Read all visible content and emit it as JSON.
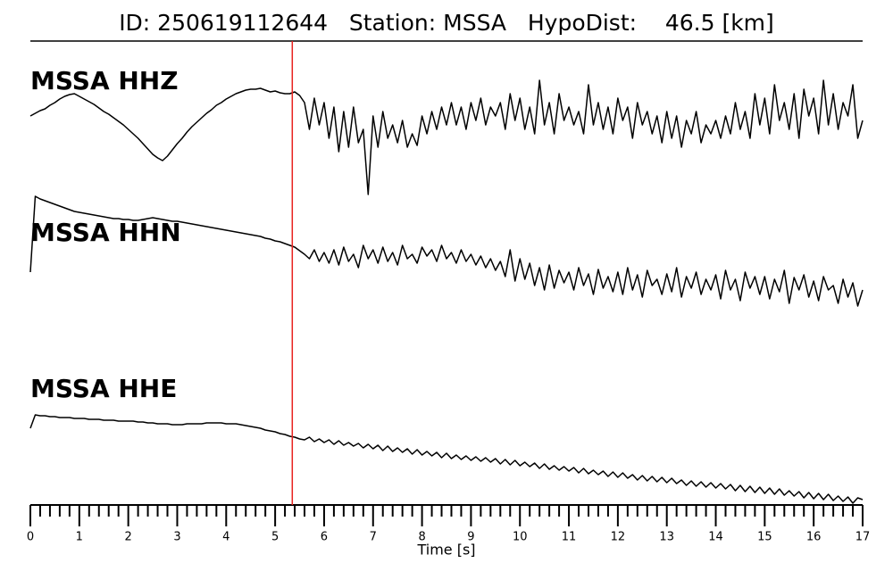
{
  "chart_data": {
    "type": "line",
    "title": "ID: 250619112644   Station: MSSA   HypoDist:    46.5 [km]",
    "xlabel": "Time [s]",
    "xlim": [
      0,
      17
    ],
    "xticks": [
      0,
      1,
      2,
      3,
      4,
      5,
      6,
      7,
      8,
      9,
      10,
      11,
      12,
      13,
      14,
      15,
      16,
      17
    ],
    "xminorticks": [
      0.2,
      0.4,
      0.6,
      0.8,
      1.2,
      1.4,
      1.6,
      1.8,
      2.2,
      2.4,
      2.6,
      2.8,
      3.2,
      3.4,
      3.6,
      3.8,
      4.2,
      4.4,
      4.6,
      4.8,
      5.2,
      5.4,
      5.6,
      5.8,
      6.2,
      6.4,
      6.6,
      6.8,
      7.2,
      7.4,
      7.6,
      7.8,
      8.2,
      8.4,
      8.6,
      8.8,
      9.2,
      9.4,
      9.6,
      9.8,
      10.2,
      10.4,
      10.6,
      10.8,
      11.2,
      11.4,
      11.6,
      11.8,
      12.2,
      12.4,
      12.6,
      12.8,
      13.2,
      13.4,
      13.6,
      13.8,
      14.2,
      14.4,
      14.6,
      14.8,
      15.2,
      15.4,
      15.6,
      15.8,
      16.2,
      16.4,
      16.6,
      16.8
    ],
    "marker_x": 5.35,
    "marker_color": "#e8221e",
    "label_color": "#4c9a0e",
    "x": [
      0,
      0.1,
      0.2,
      0.3,
      0.4,
      0.5,
      0.6,
      0.7,
      0.8,
      0.9,
      1,
      1.1,
      1.2,
      1.3,
      1.4,
      1.5,
      1.6,
      1.7,
      1.8,
      1.9,
      2,
      2.1,
      2.2,
      2.3,
      2.4,
      2.5,
      2.6,
      2.7,
      2.8,
      2.9,
      3,
      3.1,
      3.2,
      3.3,
      3.4,
      3.5,
      3.6,
      3.7,
      3.8,
      3.9,
      4,
      4.1,
      4.2,
      4.3,
      4.4,
      4.5,
      4.6,
      4.7,
      4.8,
      4.9,
      5,
      5.1,
      5.2,
      5.3,
      5.4,
      5.5,
      5.6,
      5.7,
      5.8,
      5.9,
      6,
      6.1,
      6.2,
      6.3,
      6.4,
      6.5,
      6.6,
      6.7,
      6.8,
      6.9,
      7,
      7.1,
      7.2,
      7.3,
      7.4,
      7.5,
      7.6,
      7.7,
      7.8,
      7.9,
      8,
      8.1,
      8.2,
      8.3,
      8.4,
      8.5,
      8.6,
      8.7,
      8.8,
      8.9,
      9,
      9.1,
      9.2,
      9.3,
      9.4,
      9.5,
      9.6,
      9.7,
      9.8,
      9.9,
      10,
      10.1,
      10.2,
      10.3,
      10.4,
      10.5,
      10.6,
      10.7,
      10.8,
      10.9,
      11,
      11.1,
      11.2,
      11.3,
      11.4,
      11.5,
      11.6,
      11.7,
      11.8,
      11.9,
      12,
      12.1,
      12.2,
      12.3,
      12.4,
      12.5,
      12.6,
      12.7,
      12.8,
      12.9,
      13,
      13.1,
      13.2,
      13.3,
      13.4,
      13.5,
      13.6,
      13.7,
      13.8,
      13.9,
      14,
      14.1,
      14.2,
      14.3,
      14.4,
      14.5,
      14.6,
      14.7,
      14.8,
      14.9,
      15,
      15.1,
      15.2,
      15.3,
      15.4,
      15.5,
      15.6,
      15.7,
      15.8,
      15.9,
      16,
      16.1,
      16.2,
      16.3,
      16.4,
      16.5,
      16.6,
      16.7,
      16.8,
      16.9,
      17
    ],
    "series": [
      {
        "name": "MSSA HHZ",
        "color": "#000000",
        "values": [
          5,
          8,
          11,
          13,
          17,
          20,
          24,
          27,
          29,
          30,
          27,
          24,
          21,
          18,
          14,
          10,
          7,
          3,
          -1,
          -5,
          -10,
          -15,
          -20,
          -26,
          -32,
          -38,
          -42,
          -45,
          -40,
          -33,
          -26,
          -20,
          -13,
          -7,
          -2,
          3,
          8,
          12,
          17,
          20,
          24,
          27,
          30,
          32,
          34,
          35,
          35,
          36,
          34,
          32,
          33,
          31,
          30,
          30,
          32,
          28,
          20,
          -10,
          25,
          -5,
          20,
          -20,
          15,
          -35,
          10,
          -30,
          15,
          -25,
          -10,
          -83,
          5,
          -30,
          10,
          -20,
          -5,
          -25,
          0,
          -30,
          -15,
          -28,
          5,
          -15,
          10,
          -10,
          15,
          -5,
          20,
          -5,
          15,
          -10,
          20,
          0,
          25,
          -5,
          15,
          5,
          20,
          -10,
          30,
          0,
          25,
          -10,
          15,
          -15,
          45,
          -5,
          20,
          -15,
          30,
          0,
          15,
          -5,
          10,
          -15,
          40,
          -5,
          20,
          -10,
          15,
          -15,
          25,
          0,
          15,
          -20,
          20,
          -5,
          10,
          -15,
          5,
          -25,
          10,
          -20,
          5,
          -30,
          0,
          -15,
          10,
          -25,
          -5,
          -15,
          0,
          -20,
          5,
          -15,
          20,
          -10,
          10,
          -20,
          30,
          -5,
          25,
          -15,
          40,
          0,
          20,
          -10,
          30,
          -20,
          35,
          5,
          25,
          -15,
          45,
          -5,
          30,
          -10,
          20,
          5,
          40,
          -20,
          0
        ]
      },
      {
        "name": "MSSA HHN",
        "color": "#000000",
        "values": [
          0,
          85,
          82,
          80,
          78,
          76,
          74,
          72,
          70,
          68,
          67,
          66,
          65,
          64,
          63,
          62,
          61,
          60,
          60,
          59,
          59,
          58,
          58,
          59,
          60,
          61,
          60,
          59,
          58,
          57,
          57,
          56,
          55,
          54,
          53,
          52,
          51,
          50,
          49,
          48,
          47,
          46,
          45,
          44,
          43,
          42,
          41,
          40,
          38,
          37,
          35,
          34,
          32,
          30,
          28,
          24,
          20,
          15,
          25,
          12,
          22,
          10,
          25,
          8,
          28,
          12,
          20,
          5,
          30,
          15,
          25,
          10,
          28,
          12,
          22,
          8,
          30,
          15,
          20,
          10,
          28,
          18,
          25,
          12,
          30,
          15,
          22,
          10,
          25,
          12,
          20,
          8,
          18,
          5,
          15,
          2,
          12,
          -5,
          25,
          -10,
          15,
          -8,
          10,
          -15,
          5,
          -20,
          8,
          -18,
          2,
          -12,
          0,
          -20,
          5,
          -15,
          -2,
          -25,
          3,
          -18,
          -5,
          -22,
          0,
          -25,
          5,
          -20,
          -3,
          -28,
          2,
          -15,
          -8,
          -25,
          -2,
          -22,
          5,
          -28,
          -5,
          -18,
          0,
          -25,
          -8,
          -20,
          -3,
          -30,
          2,
          -20,
          -8,
          -32,
          0,
          -18,
          -5,
          -25,
          -5,
          -30,
          -8,
          -22,
          2,
          -35,
          -6,
          -20,
          -3,
          -28,
          -10,
          -32,
          -5,
          -20,
          -15,
          -35,
          -8,
          -28,
          -12,
          -38,
          -20
        ]
      },
      {
        "name": "MSSA HHE",
        "color": "#000000",
        "values": [
          0,
          15,
          14,
          14,
          13,
          13,
          12,
          12,
          12,
          11,
          11,
          11,
          10,
          10,
          10,
          9,
          9,
          9,
          8,
          8,
          8,
          8,
          7,
          7,
          6,
          6,
          5,
          5,
          5,
          4,
          4,
          4,
          5,
          5,
          5,
          5,
          6,
          6,
          6,
          6,
          5,
          5,
          5,
          4,
          3,
          2,
          1,
          0,
          -2,
          -3,
          -4,
          -6,
          -7,
          -9,
          -10,
          -12,
          -13,
          -10,
          -15,
          -12,
          -16,
          -13,
          -18,
          -14,
          -19,
          -16,
          -20,
          -17,
          -22,
          -18,
          -23,
          -19,
          -25,
          -20,
          -26,
          -22,
          -27,
          -23,
          -29,
          -24,
          -30,
          -26,
          -31,
          -27,
          -33,
          -28,
          -34,
          -30,
          -35,
          -31,
          -36,
          -32,
          -37,
          -33,
          -38,
          -34,
          -40,
          -35,
          -41,
          -36,
          -42,
          -38,
          -43,
          -39,
          -45,
          -40,
          -46,
          -42,
          -47,
          -43,
          -48,
          -44,
          -50,
          -45,
          -51,
          -47,
          -52,
          -48,
          -54,
          -49,
          -55,
          -50,
          -56,
          -52,
          -58,
          -53,
          -59,
          -54,
          -60,
          -55,
          -61,
          -56,
          -62,
          -58,
          -64,
          -59,
          -65,
          -60,
          -66,
          -61,
          -67,
          -62,
          -68,
          -63,
          -70,
          -64,
          -71,
          -65,
          -72,
          -66,
          -73,
          -67,
          -74,
          -68,
          -75,
          -70,
          -76,
          -71,
          -78,
          -72,
          -79,
          -73,
          -80,
          -74,
          -81,
          -76,
          -82,
          -77,
          -84,
          -78,
          -80
        ]
      }
    ]
  }
}
